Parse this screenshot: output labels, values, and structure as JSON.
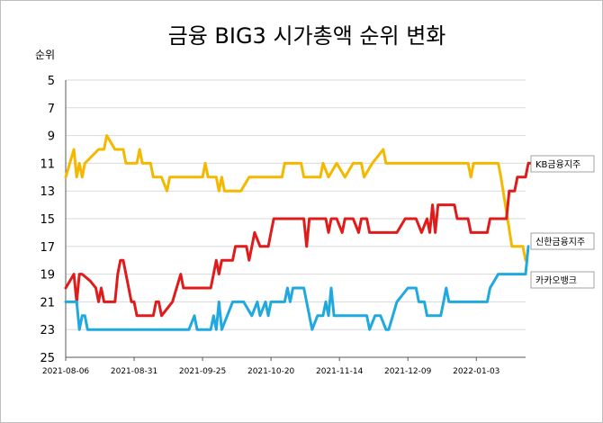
{
  "chart_data": {
    "type": "line",
    "title": "금융 BIG3 시가총액 순위 변화",
    "ylabel": "순위",
    "xlabel": "",
    "ylim": [
      25,
      5
    ],
    "y_reversed": true,
    "y_ticks": [
      "5",
      "7",
      "9",
      "11",
      "13",
      "15",
      "17",
      "19",
      "21",
      "23",
      "25"
    ],
    "x_tick_labels": [
      "2021-08-06",
      "2021-08-31",
      "2021-09-25",
      "2021-10-20",
      "2021-11-14",
      "2021-12-09",
      "2022-01-03"
    ],
    "x_range": [
      "2021-08-06",
      "2022-01-21"
    ],
    "grid": "horizontal",
    "legend": "right (labels at series ends)",
    "series": [
      {
        "name": "KB금융지주",
        "color": "#F5B800",
        "points": [
          [
            "2021-08-06",
            12
          ],
          [
            "2021-08-09",
            10
          ],
          [
            "2021-08-10",
            12
          ],
          [
            "2021-08-11",
            11
          ],
          [
            "2021-08-12",
            12
          ],
          [
            "2021-08-13",
            11
          ],
          [
            "2021-08-18",
            10
          ],
          [
            "2021-08-20",
            10
          ],
          [
            "2021-08-21",
            9
          ],
          [
            "2021-08-24",
            10
          ],
          [
            "2021-08-27",
            10
          ],
          [
            "2021-08-28",
            11
          ],
          [
            "2021-09-01",
            11
          ],
          [
            "2021-09-02",
            10
          ],
          [
            "2021-09-03",
            11
          ],
          [
            "2021-09-06",
            11
          ],
          [
            "2021-09-07",
            12
          ],
          [
            "2021-09-10",
            12
          ],
          [
            "2021-09-12",
            13
          ],
          [
            "2021-09-13",
            12
          ],
          [
            "2021-09-25",
            12
          ],
          [
            "2021-09-26",
            11
          ],
          [
            "2021-09-27",
            12
          ],
          [
            "2021-09-30",
            12
          ],
          [
            "2021-10-01",
            13
          ],
          [
            "2021-10-02",
            12
          ],
          [
            "2021-10-03",
            13
          ],
          [
            "2021-10-09",
            13
          ],
          [
            "2021-10-12",
            12
          ],
          [
            "2021-10-24",
            12
          ],
          [
            "2021-10-25",
            11
          ],
          [
            "2021-10-31",
            11
          ],
          [
            "2021-11-01",
            12
          ],
          [
            "2021-11-07",
            12
          ],
          [
            "2021-11-08",
            11
          ],
          [
            "2021-11-10",
            12
          ],
          [
            "2021-11-13",
            11
          ],
          [
            "2021-11-16",
            12
          ],
          [
            "2021-11-19",
            11
          ],
          [
            "2021-11-22",
            11
          ],
          [
            "2021-11-23",
            12
          ],
          [
            "2021-11-26",
            11
          ],
          [
            "2021-11-30",
            10
          ],
          [
            "2021-12-01",
            11
          ],
          [
            "2021-12-31",
            11
          ],
          [
            "2022-01-01",
            12
          ],
          [
            "2022-01-02",
            11
          ],
          [
            "2022-01-11",
            11
          ],
          [
            "2022-01-12",
            12
          ],
          [
            "2022-01-16",
            17
          ],
          [
            "2022-01-20",
            17
          ],
          [
            "2022-01-21",
            18
          ]
        ]
      },
      {
        "name": "신한금융지주",
        "color": "#E01B1B",
        "points": [
          [
            "2021-08-06",
            20
          ],
          [
            "2021-08-09",
            19
          ],
          [
            "2021-08-10",
            21
          ],
          [
            "2021-08-11",
            19
          ],
          [
            "2021-08-12",
            19
          ],
          [
            "2021-08-15",
            19.5
          ],
          [
            "2021-08-17",
            20
          ],
          [
            "2021-08-18",
            21
          ],
          [
            "2021-08-19",
            20
          ],
          [
            "2021-08-20",
            21
          ],
          [
            "2021-08-24",
            21
          ],
          [
            "2021-08-25",
            19
          ],
          [
            "2021-08-26",
            18
          ],
          [
            "2021-08-27",
            18
          ],
          [
            "2021-08-29",
            20
          ],
          [
            "2021-08-30",
            21
          ],
          [
            "2021-08-31",
            21
          ],
          [
            "2021-09-01",
            22
          ],
          [
            "2021-09-07",
            22
          ],
          [
            "2021-09-08",
            21
          ],
          [
            "2021-09-09",
            21
          ],
          [
            "2021-09-10",
            22
          ],
          [
            "2021-09-14",
            21
          ],
          [
            "2021-09-17",
            19
          ],
          [
            "2021-09-18",
            20
          ],
          [
            "2021-09-28",
            20
          ],
          [
            "2021-09-29",
            19
          ],
          [
            "2021-09-30",
            18
          ],
          [
            "2021-10-01",
            19
          ],
          [
            "2021-10-02",
            18
          ],
          [
            "2021-10-06",
            18
          ],
          [
            "2021-10-07",
            17
          ],
          [
            "2021-10-11",
            17
          ],
          [
            "2021-10-12",
            18
          ],
          [
            "2021-10-14",
            16
          ],
          [
            "2021-10-16",
            17
          ],
          [
            "2021-10-19",
            17
          ],
          [
            "2021-10-20",
            16
          ],
          [
            "2021-10-21",
            15
          ],
          [
            "2021-11-01",
            15
          ],
          [
            "2021-11-02",
            17
          ],
          [
            "2021-11-03",
            15
          ],
          [
            "2021-11-09",
            15
          ],
          [
            "2021-11-10",
            16
          ],
          [
            "2021-11-11",
            15
          ],
          [
            "2021-11-13",
            15
          ],
          [
            "2021-11-15",
            16
          ],
          [
            "2021-11-16",
            15
          ],
          [
            "2021-11-19",
            15
          ],
          [
            "2021-11-21",
            16
          ],
          [
            "2021-11-22",
            15
          ],
          [
            "2021-11-24",
            15
          ],
          [
            "2021-11-25",
            16
          ],
          [
            "2021-12-05",
            16
          ],
          [
            "2021-12-08",
            15
          ],
          [
            "2021-12-12",
            15
          ],
          [
            "2021-12-14",
            16
          ],
          [
            "2021-12-16",
            15
          ],
          [
            "2021-12-17",
            16
          ],
          [
            "2021-12-18",
            14
          ],
          [
            "2021-12-19",
            16
          ],
          [
            "2021-12-20",
            14
          ],
          [
            "2021-12-26",
            14
          ],
          [
            "2021-12-27",
            15
          ],
          [
            "2021-12-31",
            15
          ],
          [
            "2022-01-01",
            16
          ],
          [
            "2022-01-07",
            16
          ],
          [
            "2022-01-08",
            15
          ],
          [
            "2022-01-14",
            15
          ],
          [
            "2022-01-15",
            13
          ],
          [
            "2022-01-17",
            13
          ],
          [
            "2022-01-18",
            12
          ],
          [
            "2022-01-21",
            12
          ],
          [
            "2022-01-22",
            11
          ],
          [
            "2022-01-23",
            11
          ]
        ]
      },
      {
        "name": "카카오뱅크",
        "color": "#1FA9DF",
        "points": [
          [
            "2021-08-06",
            21
          ],
          [
            "2021-08-10",
            21
          ],
          [
            "2021-08-11",
            23
          ],
          [
            "2021-08-12",
            22
          ],
          [
            "2021-08-13",
            22
          ],
          [
            "2021-08-14",
            23
          ],
          [
            "2021-09-20",
            23
          ],
          [
            "2021-09-22",
            22
          ],
          [
            "2021-09-23",
            23
          ],
          [
            "2021-09-28",
            23
          ],
          [
            "2021-09-29",
            22
          ],
          [
            "2021-09-30",
            23
          ],
          [
            "2021-10-01",
            21
          ],
          [
            "2021-10-02",
            23
          ],
          [
            "2021-10-04",
            22
          ],
          [
            "2021-10-06",
            21
          ],
          [
            "2021-10-10",
            21
          ],
          [
            "2021-10-13",
            22
          ],
          [
            "2021-10-15",
            21
          ],
          [
            "2021-10-16",
            22
          ],
          [
            "2021-10-18",
            21
          ],
          [
            "2021-10-19",
            22
          ],
          [
            "2021-10-20",
            21
          ],
          [
            "2021-10-25",
            21
          ],
          [
            "2021-10-26",
            20
          ],
          [
            "2021-10-27",
            21
          ],
          [
            "2021-10-28",
            20
          ],
          [
            "2021-11-01",
            20
          ],
          [
            "2021-11-04",
            23
          ],
          [
            "2021-11-06",
            22
          ],
          [
            "2021-11-08",
            22
          ],
          [
            "2021-11-09",
            21
          ],
          [
            "2021-11-10",
            22
          ],
          [
            "2021-11-11",
            20
          ],
          [
            "2021-11-12",
            22
          ],
          [
            "2021-11-24",
            22
          ],
          [
            "2021-11-25",
            23
          ],
          [
            "2021-11-27",
            22
          ],
          [
            "2021-11-29",
            22
          ],
          [
            "2021-12-01",
            23
          ],
          [
            "2021-12-02",
            23
          ],
          [
            "2021-12-05",
            21
          ],
          [
            "2021-12-09",
            20
          ],
          [
            "2021-12-12",
            20
          ],
          [
            "2021-12-13",
            21
          ],
          [
            "2021-12-15",
            21
          ],
          [
            "2021-12-16",
            22
          ],
          [
            "2021-12-21",
            22
          ],
          [
            "2021-12-22",
            21
          ],
          [
            "2021-12-23",
            20
          ],
          [
            "2021-12-24",
            21
          ],
          [
            "2022-01-07",
            21
          ],
          [
            "2022-01-08",
            20
          ],
          [
            "2022-01-11",
            19
          ],
          [
            "2022-01-21",
            19
          ],
          [
            "2022-01-22",
            17
          ]
        ]
      }
    ]
  }
}
